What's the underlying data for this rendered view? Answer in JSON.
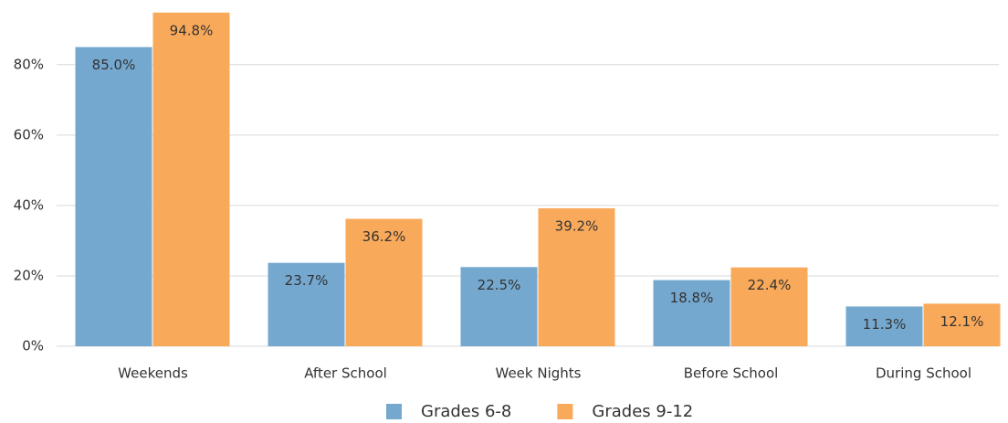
{
  "chart_data": {
    "type": "bar",
    "categories": [
      "Weekends",
      "After School",
      "Week Nights",
      "Before School",
      "During School"
    ],
    "series": [
      {
        "name": "Grades 6-8",
        "color": "#75a8cf",
        "values": [
          85.0,
          23.7,
          22.5,
          18.8,
          11.3
        ],
        "value_labels": [
          "85.0%",
          "23.7%",
          "22.5%",
          "18.8%",
          "11.3%"
        ]
      },
      {
        "name": "Grades 9-12",
        "color": "#f9a95a",
        "values": [
          94.8,
          36.2,
          39.2,
          22.4,
          12.1
        ],
        "value_labels": [
          "94.8%",
          "36.2%",
          "39.2%",
          "22.4%",
          "12.1%"
        ]
      }
    ],
    "ylim": [
      0,
      95
    ],
    "yticks": [
      {
        "value": 0,
        "label": "0%"
      },
      {
        "value": 20,
        "label": "20%"
      },
      {
        "value": 40,
        "label": "40%"
      },
      {
        "value": 60,
        "label": "60%"
      },
      {
        "value": 80,
        "label": "80%"
      }
    ],
    "grid": true,
    "legend": "bottom"
  }
}
